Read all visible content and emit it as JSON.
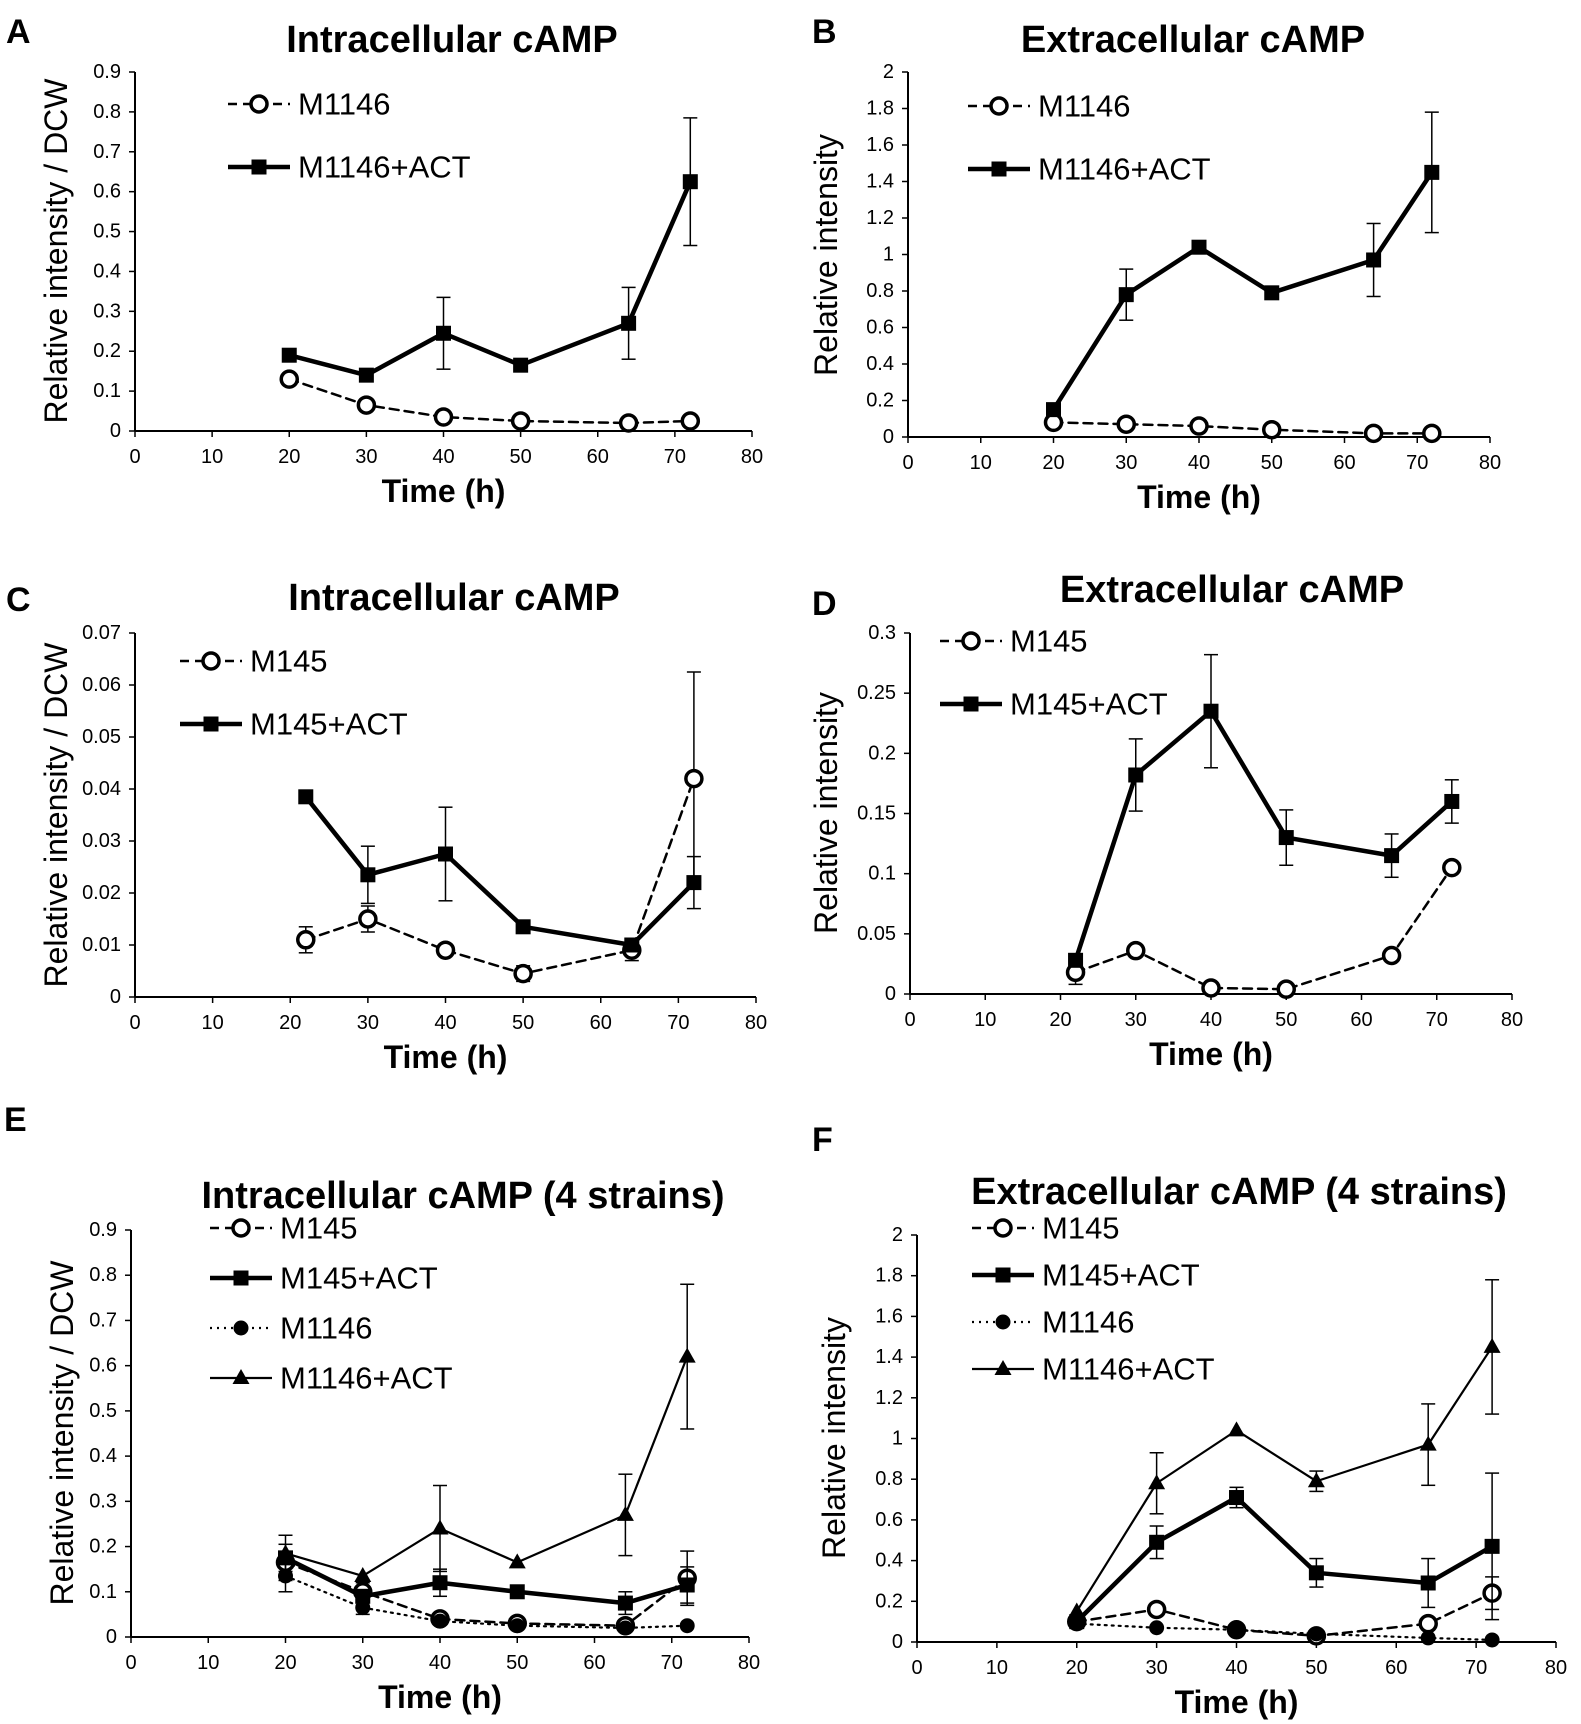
{
  "figure": {
    "background": "#ffffff",
    "ink": "#000000"
  },
  "chart_data": [
    {
      "panel": "A",
      "type": "line",
      "title": "Intracellular cAMP",
      "xlabel": "Time (h)",
      "ylabel": "Relative intensity / DCW",
      "xlim": [
        0,
        80
      ],
      "xticks": [
        0,
        10,
        20,
        30,
        40,
        50,
        60,
        70,
        80
      ],
      "ylim": [
        0,
        0.9
      ],
      "yticks": [
        0,
        0.1,
        0.2,
        0.3,
        0.4,
        0.5,
        0.6,
        0.7,
        0.8,
        0.9
      ],
      "legend_position": "top-left",
      "series": [
        {
          "name": "M1146",
          "marker": "open-circle",
          "line": "dashed",
          "x": [
            20,
            30,
            40,
            50,
            64,
            72
          ],
          "values": [
            0.13,
            0.065,
            0.035,
            0.025,
            0.02,
            0.025
          ],
          "errors": [
            0,
            0,
            0,
            0,
            0,
            0
          ]
        },
        {
          "name": "M1146+ACT",
          "marker": "filled-square",
          "line": "thick",
          "x": [
            20,
            30,
            40,
            50,
            64,
            72
          ],
          "values": [
            0.19,
            0.14,
            0.245,
            0.165,
            0.27,
            0.625
          ],
          "errors": [
            0,
            0,
            0.09,
            0,
            0.09,
            0.16
          ]
        }
      ]
    },
    {
      "panel": "B",
      "type": "line",
      "title": "Extracellular cAMP",
      "xlabel": "Time (h)",
      "ylabel": "Relative intensity",
      "xlim": [
        0,
        80
      ],
      "xticks": [
        0,
        10,
        20,
        30,
        40,
        50,
        60,
        70,
        80
      ],
      "ylim": [
        0,
        2
      ],
      "yticks": [
        0,
        0.2,
        0.4,
        0.6,
        0.8,
        1,
        1.2,
        1.4,
        1.6,
        1.8,
        2
      ],
      "legend_position": "top-left",
      "series": [
        {
          "name": "M1146",
          "marker": "open-circle",
          "line": "dashed",
          "x": [
            20,
            30,
            40,
            50,
            64,
            72
          ],
          "values": [
            0.08,
            0.07,
            0.06,
            0.04,
            0.02,
            0.02
          ],
          "errors": [
            0,
            0,
            0,
            0,
            0,
            0
          ]
        },
        {
          "name": "M1146+ACT",
          "marker": "filled-square",
          "line": "thick",
          "x": [
            20,
            30,
            40,
            50,
            64,
            72
          ],
          "values": [
            0.15,
            0.78,
            1.04,
            0.79,
            0.97,
            1.45
          ],
          "errors": [
            0,
            0.14,
            0,
            0,
            0.2,
            0.33
          ]
        }
      ]
    },
    {
      "panel": "C",
      "type": "line",
      "title": "Intracellular cAMP",
      "xlabel": "Time (h)",
      "ylabel": "Relative intensity / DCW",
      "xlim": [
        0,
        80
      ],
      "xticks": [
        0,
        10,
        20,
        30,
        40,
        50,
        60,
        70,
        80
      ],
      "ylim": [
        0,
        0.07
      ],
      "yticks": [
        0,
        0.01,
        0.02,
        0.03,
        0.04,
        0.05,
        0.06,
        0.07
      ],
      "legend_position": "top-left",
      "series": [
        {
          "name": "M145",
          "marker": "open-circle",
          "line": "dashed",
          "x": [
            22,
            30,
            40,
            50,
            64,
            72
          ],
          "values": [
            0.011,
            0.015,
            0.009,
            0.0045,
            0.009,
            0.042
          ],
          "errors": [
            0.0025,
            0.0025,
            0,
            0.0015,
            0.002,
            0.0205
          ]
        },
        {
          "name": "M145+ACT",
          "marker": "filled-square",
          "line": "thick",
          "x": [
            22,
            30,
            40,
            50,
            64,
            72
          ],
          "values": [
            0.0385,
            0.0235,
            0.0275,
            0.0135,
            0.01,
            0.022
          ],
          "errors": [
            0,
            0.0055,
            0.009,
            0,
            0,
            0.005
          ]
        }
      ]
    },
    {
      "panel": "D",
      "type": "line",
      "title": "Extracellular cAMP",
      "xlabel": "Time (h)",
      "ylabel": "Relative intensity",
      "xlim": [
        0,
        80
      ],
      "xticks": [
        0,
        10,
        20,
        30,
        40,
        50,
        60,
        70,
        80
      ],
      "ylim": [
        0,
        0.3
      ],
      "yticks": [
        0,
        0.05,
        0.1,
        0.15,
        0.2,
        0.25,
        0.3
      ],
      "legend_position": "top-left",
      "series": [
        {
          "name": "M145",
          "marker": "open-circle",
          "line": "dashed",
          "x": [
            22,
            30,
            40,
            50,
            64,
            72
          ],
          "values": [
            0.018,
            0.036,
            0.005,
            0.004,
            0.032,
            0.105
          ],
          "errors": [
            0.01,
            0,
            0,
            0,
            0,
            0
          ]
        },
        {
          "name": "M145+ACT",
          "marker": "filled-square",
          "line": "thick",
          "x": [
            22,
            30,
            40,
            50,
            64,
            72
          ],
          "values": [
            0.028,
            0.182,
            0.235,
            0.13,
            0.115,
            0.16
          ],
          "errors": [
            0,
            0.03,
            0.047,
            0.023,
            0.018,
            0.018
          ]
        }
      ]
    },
    {
      "panel": "E",
      "type": "line",
      "title": "Intracellular cAMP (4 strains)",
      "xlabel": "Time (h)",
      "ylabel": "Relative intensity / DCW",
      "xlim": [
        0,
        80
      ],
      "xticks": [
        0,
        10,
        20,
        30,
        40,
        50,
        60,
        70,
        80
      ],
      "ylim": [
        0,
        0.9
      ],
      "yticks": [
        0,
        0.1,
        0.2,
        0.3,
        0.4,
        0.5,
        0.6,
        0.7,
        0.8,
        0.9
      ],
      "legend_position": "top-left",
      "series": [
        {
          "name": "M145",
          "marker": "open-circle",
          "line": "dashed",
          "x": [
            20,
            30,
            40,
            50,
            64,
            72
          ],
          "values": [
            0.165,
            0.1,
            0.04,
            0.03,
            0.025,
            0.13
          ],
          "errors": [
            0.04,
            0.02,
            0,
            0,
            0,
            0.06
          ]
        },
        {
          "name": "M145+ACT",
          "marker": "filled-square",
          "line": "thick",
          "x": [
            20,
            30,
            40,
            50,
            64,
            72
          ],
          "values": [
            0.175,
            0.09,
            0.12,
            0.1,
            0.075,
            0.115
          ],
          "errors": [
            0,
            0,
            0.03,
            0,
            0.025,
            0.04
          ]
        },
        {
          "name": "M1146",
          "marker": "filled-circle",
          "line": "dotted",
          "x": [
            20,
            30,
            40,
            50,
            64,
            72
          ],
          "values": [
            0.135,
            0.065,
            0.035,
            0.025,
            0.02,
            0.025
          ],
          "errors": [
            0.035,
            0.015,
            0,
            0,
            0,
            0
          ]
        },
        {
          "name": "M1146+ACT",
          "marker": "filled-triangle",
          "line": "thin",
          "x": [
            20,
            30,
            40,
            50,
            64,
            72
          ],
          "values": [
            0.185,
            0.135,
            0.24,
            0.165,
            0.27,
            0.62
          ],
          "errors": [
            0.04,
            0,
            0.095,
            0,
            0.09,
            0.16
          ]
        }
      ]
    },
    {
      "panel": "F",
      "type": "line",
      "title": "Extracellular cAMP (4 strains)",
      "xlabel": "Time (h)",
      "ylabel": "Relative intensity",
      "xlim": [
        0,
        80
      ],
      "xticks": [
        0,
        10,
        20,
        30,
        40,
        50,
        60,
        70,
        80
      ],
      "ylim": [
        0,
        2
      ],
      "yticks": [
        0,
        0.2,
        0.4,
        0.6,
        0.8,
        1,
        1.2,
        1.4,
        1.6,
        1.8,
        2
      ],
      "legend_position": "top-left",
      "series": [
        {
          "name": "M145",
          "marker": "open-circle",
          "line": "dashed",
          "x": [
            20,
            30,
            40,
            50,
            64,
            72
          ],
          "values": [
            0.1,
            0.16,
            0.06,
            0.03,
            0.09,
            0.24
          ],
          "errors": [
            0,
            0,
            0,
            0,
            0,
            0.08
          ]
        },
        {
          "name": "M145+ACT",
          "marker": "filled-square",
          "line": "thick",
          "x": [
            20,
            30,
            40,
            50,
            64,
            72
          ],
          "values": [
            0.1,
            0.49,
            0.71,
            0.34,
            0.29,
            0.47
          ],
          "errors": [
            0,
            0.08,
            0.05,
            0.07,
            0.12,
            0.36
          ]
        },
        {
          "name": "M1146",
          "marker": "filled-circle",
          "line": "dotted",
          "x": [
            20,
            30,
            40,
            50,
            64,
            72
          ],
          "values": [
            0.09,
            0.07,
            0.06,
            0.04,
            0.02,
            0.01
          ],
          "errors": [
            0,
            0,
            0,
            0,
            0,
            0
          ]
        },
        {
          "name": "M1146+ACT",
          "marker": "filled-triangle",
          "line": "thin",
          "x": [
            20,
            30,
            40,
            50,
            64,
            72
          ],
          "values": [
            0.15,
            0.78,
            1.04,
            0.79,
            0.97,
            1.45
          ],
          "errors": [
            0,
            0.15,
            0,
            0.05,
            0.2,
            0.33
          ]
        }
      ]
    }
  ]
}
